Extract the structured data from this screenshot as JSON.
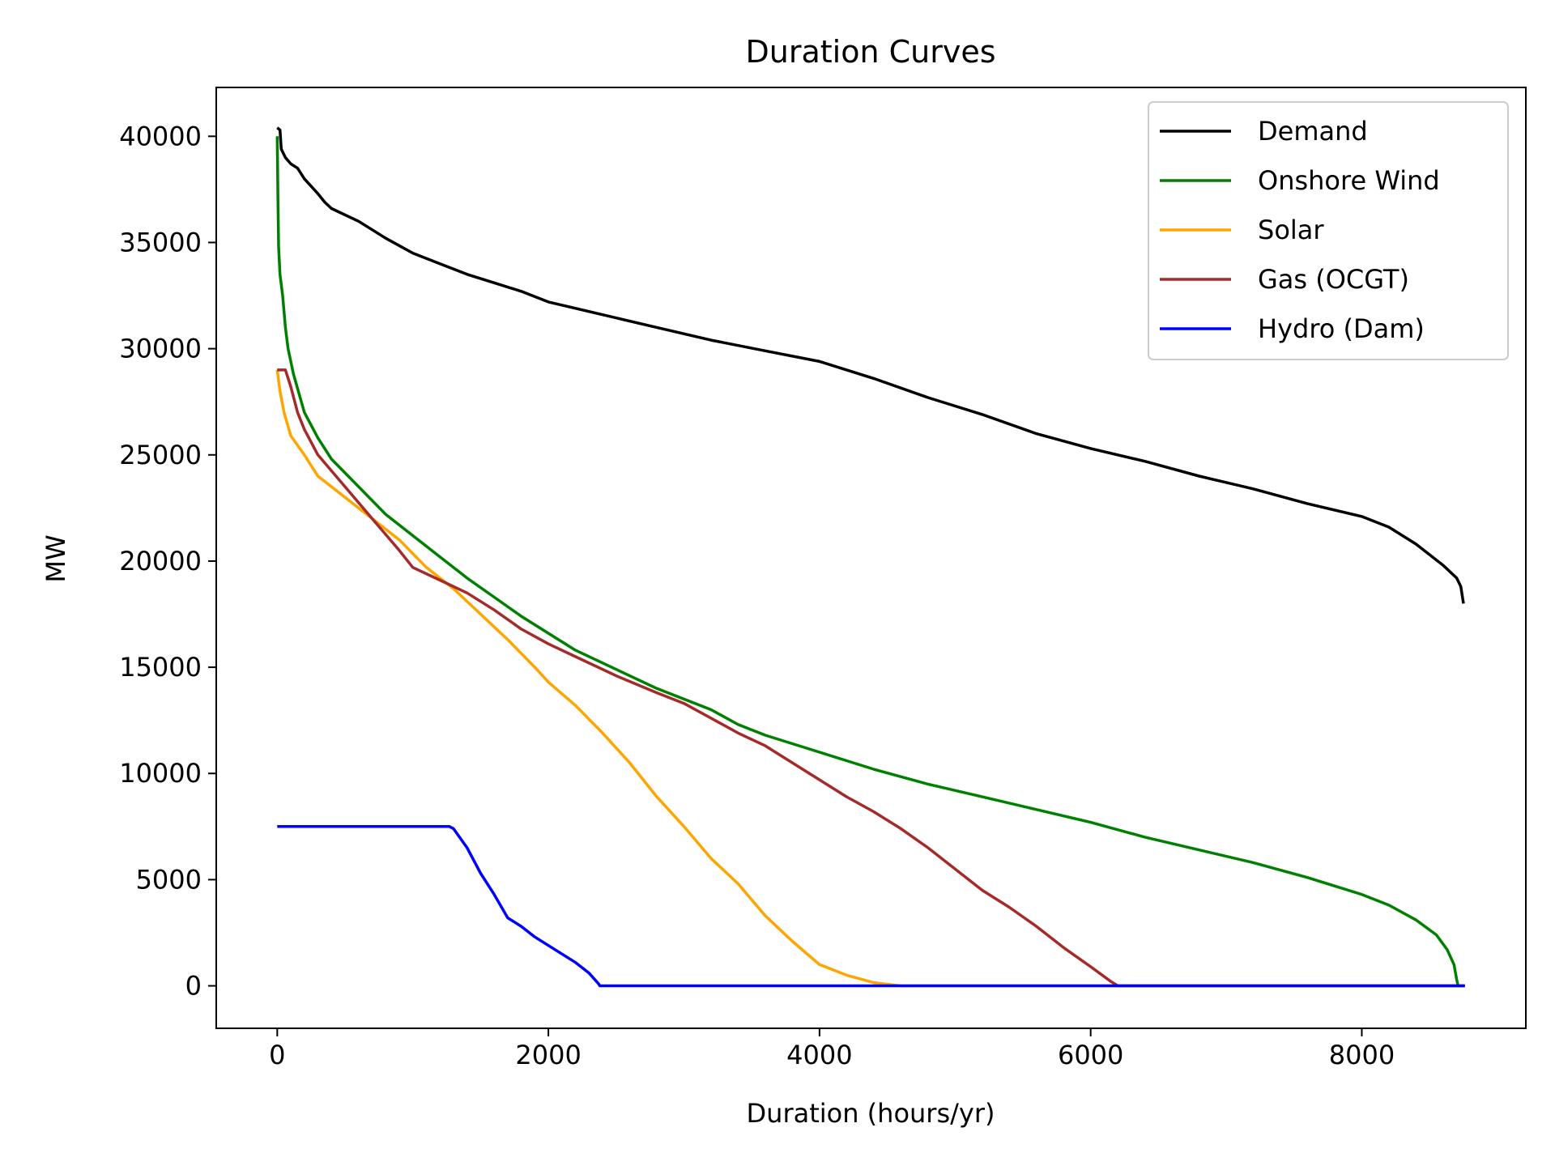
{
  "chart_data": {
    "type": "line",
    "title": "Duration Curves",
    "xlabel": "Duration (hours/yr)",
    "ylabel": "MW",
    "xlim": [
      -450,
      9210
    ],
    "ylim": [
      -2000,
      42300
    ],
    "xticks": [
      0,
      2000,
      4000,
      6000,
      8000
    ],
    "yticks": [
      0,
      5000,
      10000,
      15000,
      20000,
      25000,
      30000,
      35000,
      40000
    ],
    "grid": false,
    "legend_position": "top-right",
    "series": [
      {
        "name": "Demand",
        "color": "#000000",
        "points": [
          [
            0,
            40400
          ],
          [
            20,
            40300
          ],
          [
            30,
            39400
          ],
          [
            60,
            39000
          ],
          [
            100,
            38700
          ],
          [
            150,
            38500
          ],
          [
            200,
            38000
          ],
          [
            300,
            37300
          ],
          [
            350,
            36900
          ],
          [
            400,
            36600
          ],
          [
            600,
            36000
          ],
          [
            800,
            35200
          ],
          [
            1000,
            34500
          ],
          [
            1200,
            34000
          ],
          [
            1400,
            33500
          ],
          [
            1600,
            33100
          ],
          [
            1800,
            32700
          ],
          [
            2000,
            32200
          ],
          [
            2400,
            31600
          ],
          [
            2800,
            31000
          ],
          [
            3200,
            30400
          ],
          [
            3600,
            29900
          ],
          [
            4000,
            29400
          ],
          [
            4200,
            29000
          ],
          [
            4400,
            28600
          ],
          [
            4800,
            27700
          ],
          [
            5200,
            26900
          ],
          [
            5600,
            26000
          ],
          [
            6000,
            25300
          ],
          [
            6400,
            24700
          ],
          [
            6800,
            24000
          ],
          [
            7200,
            23400
          ],
          [
            7600,
            22700
          ],
          [
            8000,
            22100
          ],
          [
            8200,
            21600
          ],
          [
            8400,
            20800
          ],
          [
            8600,
            19800
          ],
          [
            8700,
            19200
          ],
          [
            8730,
            18800
          ],
          [
            8750,
            18000
          ]
        ]
      },
      {
        "name": "Onshore Wind",
        "color": "#008000",
        "points": [
          [
            0,
            40000
          ],
          [
            5,
            37000
          ],
          [
            10,
            34800
          ],
          [
            20,
            33500
          ],
          [
            40,
            32500
          ],
          [
            60,
            31000
          ],
          [
            80,
            30000
          ],
          [
            120,
            28800
          ],
          [
            200,
            27000
          ],
          [
            300,
            25800
          ],
          [
            400,
            24800
          ],
          [
            600,
            23500
          ],
          [
            800,
            22200
          ],
          [
            1000,
            21200
          ],
          [
            1200,
            20200
          ],
          [
            1400,
            19200
          ],
          [
            1600,
            18300
          ],
          [
            1800,
            17400
          ],
          [
            2000,
            16600
          ],
          [
            2200,
            15800
          ],
          [
            2500,
            14900
          ],
          [
            2800,
            14000
          ],
          [
            3000,
            13500
          ],
          [
            3200,
            13000
          ],
          [
            3400,
            12300
          ],
          [
            3600,
            11800
          ],
          [
            4000,
            11000
          ],
          [
            4400,
            10200
          ],
          [
            4800,
            9500
          ],
          [
            5200,
            8900
          ],
          [
            5600,
            8300
          ],
          [
            6000,
            7700
          ],
          [
            6400,
            7000
          ],
          [
            6800,
            6400
          ],
          [
            7200,
            5800
          ],
          [
            7600,
            5100
          ],
          [
            8000,
            4300
          ],
          [
            8200,
            3800
          ],
          [
            8400,
            3100
          ],
          [
            8550,
            2400
          ],
          [
            8630,
            1700
          ],
          [
            8680,
            1000
          ],
          [
            8700,
            300
          ],
          [
            8710,
            0
          ],
          [
            8760,
            0
          ]
        ]
      },
      {
        "name": "Solar",
        "color": "#ffa500",
        "points": [
          [
            0,
            29000
          ],
          [
            20,
            28000
          ],
          [
            50,
            27000
          ],
          [
            100,
            25900
          ],
          [
            200,
            25000
          ],
          [
            300,
            24000
          ],
          [
            500,
            23000
          ],
          [
            700,
            22000
          ],
          [
            900,
            21000
          ],
          [
            1100,
            19700
          ],
          [
            1300,
            18700
          ],
          [
            1500,
            17500
          ],
          [
            1700,
            16300
          ],
          [
            1900,
            15000
          ],
          [
            2000,
            14300
          ],
          [
            2200,
            13200
          ],
          [
            2400,
            11900
          ],
          [
            2600,
            10500
          ],
          [
            2800,
            8900
          ],
          [
            3000,
            7500
          ],
          [
            3200,
            6000
          ],
          [
            3400,
            4800
          ],
          [
            3600,
            3300
          ],
          [
            3800,
            2100
          ],
          [
            4000,
            1000
          ],
          [
            4200,
            500
          ],
          [
            4400,
            150
          ],
          [
            4600,
            0
          ],
          [
            8760,
            0
          ]
        ]
      },
      {
        "name": "Gas (OCGT)",
        "color": "#a52a2a",
        "points": [
          [
            0,
            29000
          ],
          [
            60,
            29000
          ],
          [
            100,
            28200
          ],
          [
            150,
            27000
          ],
          [
            200,
            26200
          ],
          [
            300,
            25000
          ],
          [
            500,
            23500
          ],
          [
            700,
            22000
          ],
          [
            900,
            20500
          ],
          [
            1000,
            19700
          ],
          [
            1200,
            19100
          ],
          [
            1400,
            18500
          ],
          [
            1600,
            17700
          ],
          [
            1800,
            16800
          ],
          [
            2000,
            16100
          ],
          [
            2200,
            15500
          ],
          [
            2500,
            14600
          ],
          [
            2800,
            13800
          ],
          [
            3000,
            13300
          ],
          [
            3200,
            12600
          ],
          [
            3400,
            11900
          ],
          [
            3600,
            11300
          ],
          [
            3800,
            10500
          ],
          [
            4000,
            9700
          ],
          [
            4200,
            8900
          ],
          [
            4400,
            8200
          ],
          [
            4600,
            7400
          ],
          [
            4800,
            6500
          ],
          [
            5000,
            5500
          ],
          [
            5200,
            4500
          ],
          [
            5400,
            3700
          ],
          [
            5600,
            2800
          ],
          [
            5800,
            1800
          ],
          [
            6000,
            900
          ],
          [
            6150,
            200
          ],
          [
            6200,
            0
          ],
          [
            8760,
            0
          ]
        ]
      },
      {
        "name": "Hydro (Dam)",
        "color": "#0000ff",
        "points": [
          [
            0,
            7500
          ],
          [
            1270,
            7500
          ],
          [
            1300,
            7400
          ],
          [
            1400,
            6500
          ],
          [
            1500,
            5300
          ],
          [
            1600,
            4300
          ],
          [
            1700,
            3200
          ],
          [
            1800,
            2800
          ],
          [
            1900,
            2300
          ],
          [
            2000,
            1900
          ],
          [
            2100,
            1500
          ],
          [
            2200,
            1100
          ],
          [
            2300,
            600
          ],
          [
            2370,
            100
          ],
          [
            2380,
            0
          ],
          [
            8760,
            0
          ]
        ]
      }
    ]
  }
}
